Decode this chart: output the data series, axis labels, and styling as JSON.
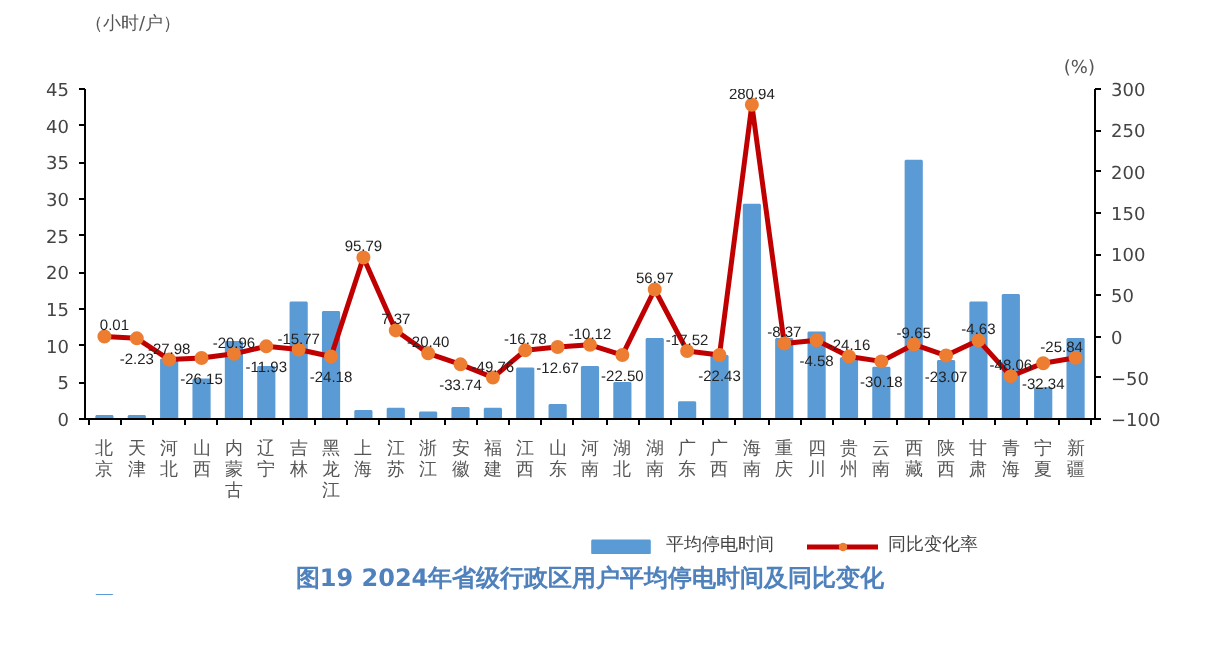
{
  "chart_data": {
    "type": "bar",
    "title": "图19 2024年省级行政区用户平均停电时间及同比变化",
    "ylabel": "（小时/户）",
    "y2label": "(%)",
    "categories": [
      "北京",
      "天津",
      "河北",
      "山西",
      "内蒙古",
      "辽宁",
      "吉林",
      "黑龙江",
      "上海",
      "江苏",
      "浙江",
      "安徽",
      "福建",
      "江西",
      "山东",
      "河南",
      "湖北",
      "湖南",
      "广东",
      "广西",
      "海南",
      "重庆",
      "四川",
      "贵州",
      "云南",
      "西藏",
      "陕西",
      "甘肃",
      "青海",
      "宁夏",
      "新疆"
    ],
    "series": [
      {
        "name": "平均停电时间",
        "color": "#5b9bd5",
        "values": [
          0.4,
          0.4,
          8.1,
          5.4,
          10.5,
          7.1,
          15.9,
          14.6,
          1.1,
          1.4,
          0.9,
          1.5,
          1.4,
          6.9,
          1.9,
          7.1,
          4.9,
          10.9,
          2.3,
          8.6,
          29.2,
          10.9,
          11.8,
          8.3,
          7.0,
          35.2,
          7.9,
          15.9,
          16.9,
          4.2,
          10.9
        ]
      },
      {
        "name": "同比变化率",
        "type": "line",
        "axis": "y2",
        "color": "#c00000",
        "marker": "circle",
        "value_labels": [
          "0.01",
          "-2.23",
          "-27.98",
          "-26.15",
          "-20.96",
          "-11.93",
          "-15.77",
          "-24.18",
          "95.79",
          "7.37",
          "-20.40",
          "-33.74",
          "-49.76",
          "-16.78",
          "-12.67",
          "-10.12",
          "-22.50",
          "56.97",
          "-17.52",
          "-22.43",
          "280.94",
          "-8.37",
          "-4.58",
          "-24.16",
          "-30.18",
          "-9.65",
          "-23.07",
          "-4.63",
          "-48.06",
          "-32.34",
          "-25.84"
        ],
        "values": [
          0.01,
          -2.23,
          -27.98,
          -26.15,
          -20.96,
          -11.93,
          -15.77,
          -24.18,
          95.79,
          7.37,
          -20.4,
          -33.74,
          -49.76,
          -16.78,
          -12.67,
          -10.12,
          -22.5,
          56.97,
          -17.52,
          -22.43,
          280.94,
          -8.37,
          -4.58,
          -24.16,
          -30.18,
          -9.65,
          -23.07,
          -4.63,
          -48.06,
          -32.34,
          -25.84
        ]
      }
    ],
    "ylim": [
      0,
      45
    ],
    "yticks": [
      0,
      5,
      10,
      15,
      20,
      25,
      30,
      35,
      40,
      45
    ],
    "y2lim": [
      -100,
      300
    ],
    "y2ticks": [
      -100,
      -50,
      0,
      50,
      100,
      150,
      200,
      250,
      300
    ],
    "grid": false,
    "legend": "bottom"
  }
}
